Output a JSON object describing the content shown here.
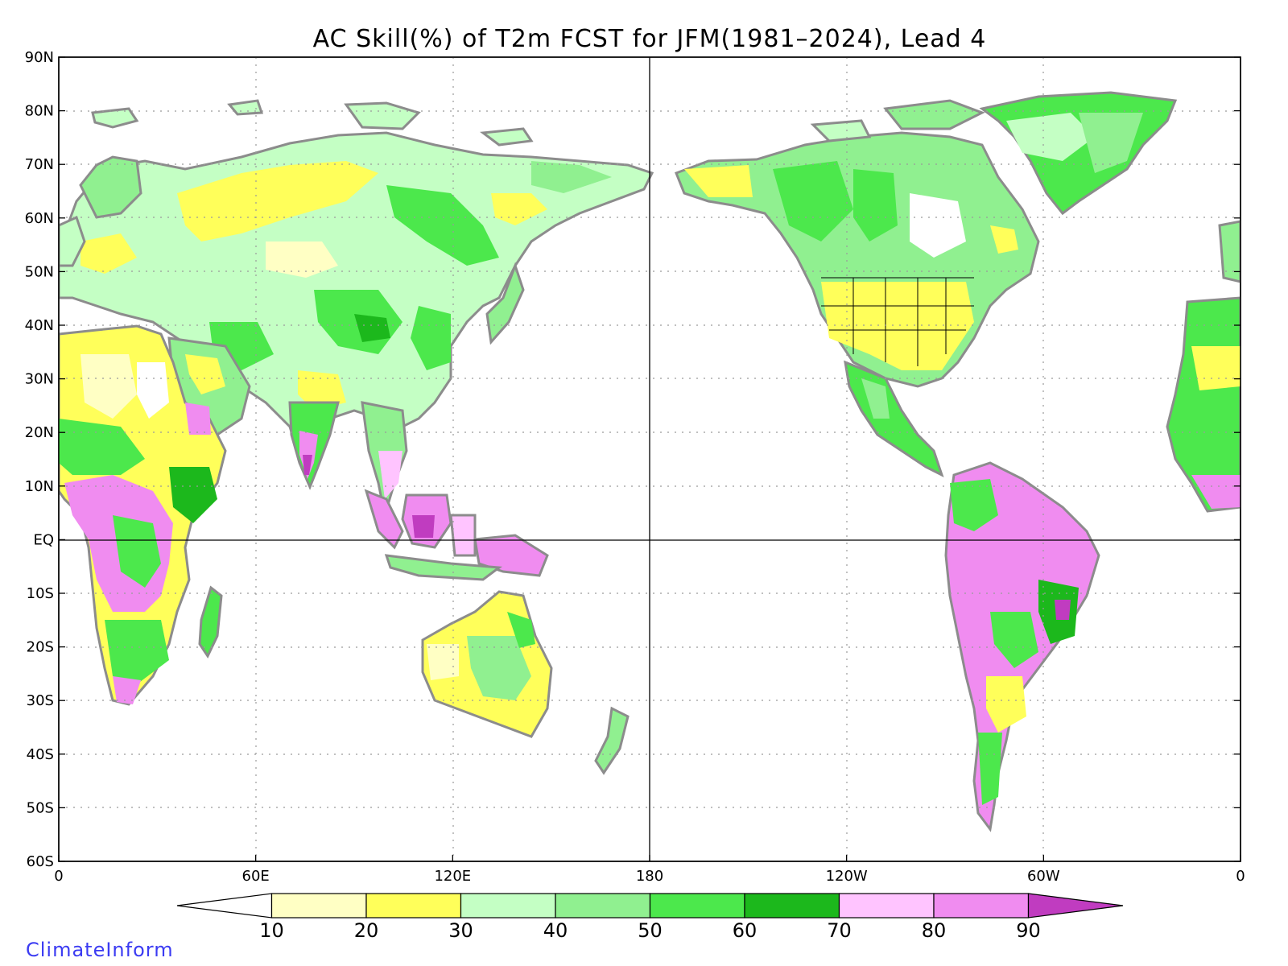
{
  "title": "AC Skill(%) of T2m FCST for JFM(1981–2024), Lead 4",
  "lat_ticks": [
    "90N",
    "80N",
    "70N",
    "60N",
    "50N",
    "40N",
    "30N",
    "20N",
    "10N",
    "EQ",
    "10S",
    "20S",
    "30S",
    "40S",
    "50S",
    "60S"
  ],
  "lon_ticks": [
    "0",
    "60E",
    "120E",
    "180",
    "120W",
    "60W",
    "0"
  ],
  "colorbar": {
    "labels": [
      "10",
      "20",
      "30",
      "40",
      "50",
      "60",
      "70",
      "80",
      "90"
    ],
    "colors": [
      "#ffffff",
      "#ffffc4",
      "#ffff5a",
      "#c4ffc4",
      "#90f090",
      "#4ce84c",
      "#1cb81c",
      "#ffc4ff",
      "#f08cf0",
      "#c03cc0"
    ]
  },
  "credit": "ClimateInform",
  "colors": {
    "land_outline": "#8c8c8c",
    "grid_dotted": "#9a9a9a"
  }
}
